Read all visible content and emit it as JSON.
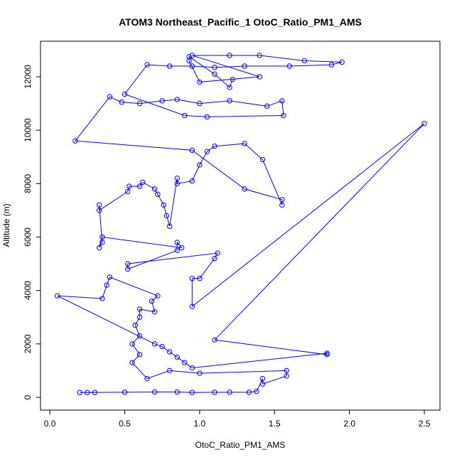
{
  "chart_data": {
    "type": "line",
    "markers": "open-circle",
    "title": "ATOM3 Northeast_Pacific_1 OtoC_Ratio_PM1_AMS",
    "x_label": "OtoC_Ratio_PM1_AMS",
    "y_label": "Altitude (m)",
    "color": "#0000ff",
    "grid": false,
    "xlim": [
      -0.062,
      2.604
    ],
    "ylim": [
      -479,
      13331
    ],
    "xticks": [
      {
        "value": 0,
        "label": "0.0"
      },
      0.5,
      {
        "value": 1,
        "label": "1.0"
      },
      1.5,
      {
        "value": 2,
        "label": "2.0"
      },
      2.5
    ],
    "yticks": [
      0,
      2000,
      4000,
      6000,
      8000,
      10000,
      12000
    ],
    "x": [
      0.3,
      0.25,
      0.2,
      0.5,
      0.7,
      0.85,
      0.95,
      1.1,
      1.2,
      1.33,
      1.38,
      1.42,
      1.42,
      1.58,
      1.58,
      1.0,
      0.8,
      0.65,
      0.55,
      0.6,
      0.55,
      0.6,
      0.57,
      0.6,
      0.6,
      0.7,
      0.68,
      0.72,
      0.4,
      0.38,
      0.35,
      0.05,
      0.7,
      0.75,
      0.8,
      0.85,
      0.9,
      0.95,
      1.85,
      1.85,
      1.1,
      2.5,
      0.95,
      0.95,
      1.0,
      1.1,
      1.12,
      0.52,
      0.52,
      0.85,
      0.85,
      0.88,
      0.35,
      0.33,
      0.35,
      0.33,
      0.33,
      0.52,
      0.53,
      0.6,
      0.62,
      0.7,
      0.72,
      0.76,
      0.78,
      0.8,
      0.85,
      0.85,
      0.95,
      1.0,
      1.05,
      1.1,
      1.3,
      1.42,
      1.55,
      1.55,
      1.3,
      0.95,
      0.17,
      0.4,
      0.48,
      0.6,
      0.75,
      0.85,
      1.0,
      1.2,
      1.45,
      1.55,
      1.56,
      1.05,
      0.9,
      0.5,
      0.65,
      0.8,
      0.95,
      1.1,
      1.3,
      1.6,
      1.88,
      1.95,
      1.7,
      1.4,
      1.2,
      0.95,
      1.4,
      1.0,
      0.93,
      0.93,
      1.1,
      1.2,
      1.22
    ],
    "y": [
      180,
      180,
      180,
      190,
      200,
      200,
      180,
      190,
      190,
      190,
      220,
      700,
      500,
      800,
      1000,
      900,
      1000,
      700,
      1300,
      1600,
      2000,
      2300,
      2700,
      3000,
      3300,
      3200,
      3600,
      3800,
      4500,
      4200,
      3700,
      3800,
      2000,
      1900,
      1700,
      1500,
      1300,
      1100,
      1650,
      1600,
      2150,
      10250,
      3400,
      4450,
      4450,
      5200,
      5400,
      5000,
      4800,
      5500,
      5800,
      5600,
      6000,
      5600,
      5800,
      7200,
      7000,
      7700,
      7900,
      7900,
      8050,
      7800,
      7600,
      7200,
      6800,
      6400,
      8200,
      8000,
      8100,
      8700,
      9200,
      9400,
      9500,
      8900,
      7200,
      7400,
      7800,
      9250,
      9600,
      11250,
      11050,
      11000,
      11100,
      11150,
      11000,
      11100,
      10900,
      11100,
      10550,
      10500,
      10550,
      11350,
      12450,
      12400,
      12400,
      12350,
      12400,
      12400,
      12450,
      12550,
      12600,
      12800,
      12800,
      12800,
      12000,
      11800,
      12600,
      12750,
      12100,
      11600,
      11900
    ]
  }
}
